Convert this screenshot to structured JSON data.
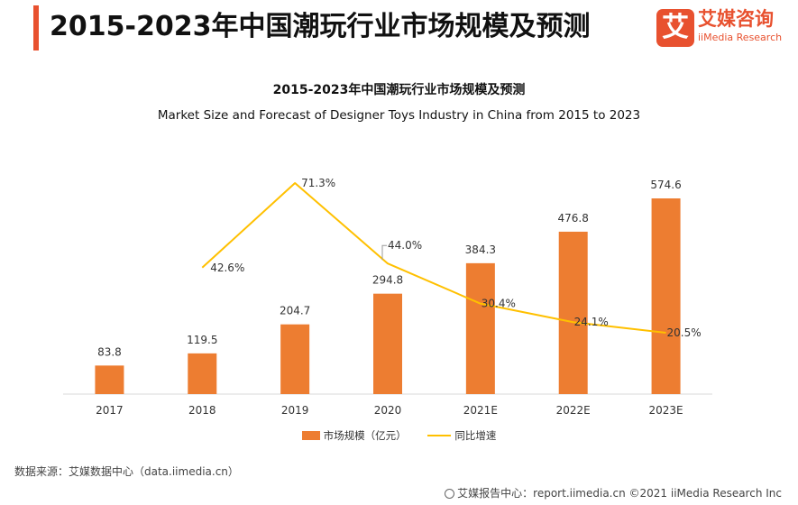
{
  "header": {
    "title": "2015-2023年中国潮玩行业市场规模及预测"
  },
  "logo": {
    "mark": "艾",
    "name_cn": "艾媒咨询",
    "name_en": "iiMedia Research"
  },
  "colors": {
    "accent": "#e8512f",
    "bar": "#ed7d31",
    "line": "#ffc000"
  },
  "chart_data": {
    "type": "bar",
    "title": "2015-2023年中国潮玩行业市场规模及预测",
    "subtitle": "Market Size and Forecast of Designer Toys Industry in China from 2015 to 2023",
    "categories": [
      "2017",
      "2018",
      "2019",
      "2020",
      "2021E",
      "2022E",
      "2023E"
    ],
    "series": [
      {
        "name": "市场规模（亿元）",
        "type": "bar",
        "values": [
          83.8,
          119.5,
          204.7,
          294.8,
          384.3,
          476.8,
          574.6
        ],
        "labels": [
          "83.8",
          "119.5",
          "204.7",
          "294.8",
          "384.3",
          "476.8",
          "574.6"
        ]
      },
      {
        "name": "同比增速",
        "type": "line",
        "values": [
          null,
          42.6,
          71.3,
          44.0,
          30.4,
          24.1,
          20.5
        ],
        "labels": [
          "",
          "42.6%",
          "71.3%",
          "44.0%",
          "30.4%",
          "24.1%",
          "20.5%"
        ]
      }
    ],
    "ylim": [
      0,
      600
    ],
    "y2lim": [
      0,
      100
    ],
    "grid": false,
    "legend": "bottom"
  },
  "source": "数据来源：艾媒数据中心（data.iimedia.cn）",
  "footer": "艾媒报告中心：report.iimedia.cn  ©2021  iiMedia Research  Inc"
}
